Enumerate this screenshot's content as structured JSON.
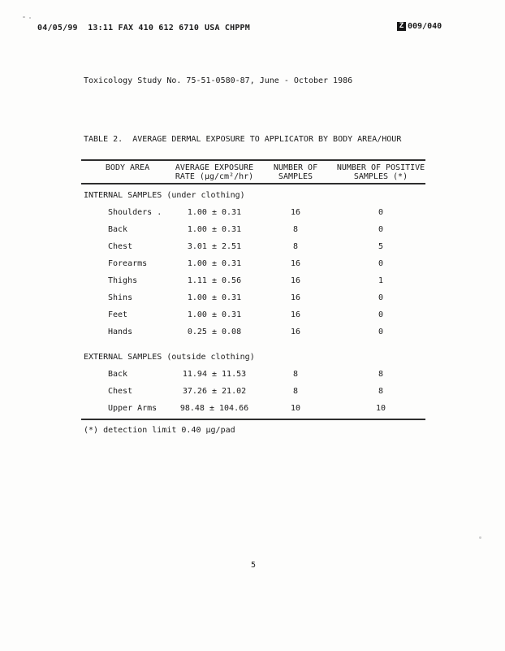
{
  "fax_header": {
    "timestamp_line": "04/05/99  13:11 FAX 410 612 6710",
    "sender": "USA CHPPM",
    "page_icon_glyph": "Z",
    "page_counter": "009/040"
  },
  "document": {
    "study_title": "Toxicology Study No. 75-51-0580-87, June - October 1986",
    "table_caption": "TABLE 2.  AVERAGE DERMAL EXPOSURE TO APPLICATOR BY BODY AREA/HOUR",
    "footnote": "(*) detection limit 0.40 µg/pad",
    "page_number": "5"
  },
  "table": {
    "columns": [
      {
        "line1": "BODY AREA",
        "line2": ""
      },
      {
        "line1": "AVERAGE EXPOSURE",
        "line2": "RATE (µg/cm²/hr)"
      },
      {
        "line1": "NUMBER OF",
        "line2": "SAMPLES"
      },
      {
        "line1": "NUMBER OF POSITIVE",
        "line2": "SAMPLES (*)"
      }
    ],
    "sections": [
      {
        "label": "INTERNAL SAMPLES (under clothing)",
        "rows": [
          {
            "area": "Shoulders .",
            "rate": "1.00 ± 0.31",
            "samples": "16",
            "positive": "0"
          },
          {
            "area": "Back",
            "rate": "1.00 ± 0.31",
            "samples": "8",
            "positive": "0"
          },
          {
            "area": "Chest",
            "rate": "3.01 ± 2.51",
            "samples": "8",
            "positive": "5"
          },
          {
            "area": "Forearms",
            "rate": "1.00 ± 0.31",
            "samples": "16",
            "positive": "0"
          },
          {
            "area": "Thighs",
            "rate": "1.11 ± 0.56",
            "samples": "16",
            "positive": "1"
          },
          {
            "area": "Shins",
            "rate": "1.00 ± 0.31",
            "samples": "16",
            "positive": "0"
          },
          {
            "area": "Feet",
            "rate": "1.00 ± 0.31",
            "samples": "16",
            "positive": "0"
          },
          {
            "area": "Hands",
            "rate": "0.25 ± 0.08",
            "samples": "16",
            "positive": "0"
          }
        ]
      },
      {
        "label": "EXTERNAL SAMPLES (outside clothing)",
        "rows": [
          {
            "area": "Back",
            "rate": "11.94 ± 11.53",
            "samples": "8",
            "positive": "8"
          },
          {
            "area": "Chest",
            "rate": "37.26 ± 21.02",
            "samples": "8",
            "positive": "8"
          },
          {
            "area": "Upper Arms",
            "rate": "98.48 ± 104.66",
            "samples": "10",
            "positive": "10"
          }
        ]
      }
    ]
  }
}
